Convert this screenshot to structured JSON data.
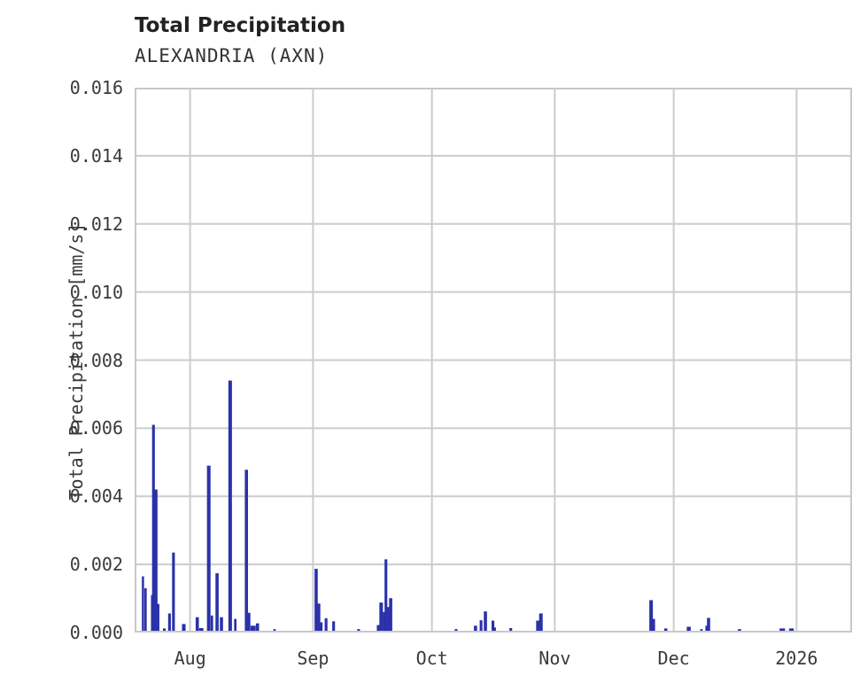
{
  "header": {
    "title": "Total Precipitation",
    "subtitle": "ALEXANDRIA (AXN)"
  },
  "chart_data": {
    "type": "bar",
    "title": "Total Precipitation",
    "subtitle": "ALEXANDRIA (AXN)",
    "station": "ALEXANDRIA (AXN)",
    "xlabel": "",
    "ylabel": "Total Precipitation [mm/s]",
    "ylim": [
      0,
      0.016
    ],
    "y_ticks": [
      0.0,
      0.002,
      0.004,
      0.006,
      0.008,
      0.01,
      0.012,
      0.014,
      0.016
    ],
    "y_tick_labels": [
      "0.000",
      "0.002",
      "0.004",
      "0.006",
      "0.008",
      "0.010",
      "0.012",
      "0.014",
      "0.016"
    ],
    "grid": true,
    "grid_color": "#cccccc",
    "border_color": "#c8c8c8",
    "bar_color": "#2a31a9",
    "x_axis_note": "time axis spans ~181 days, mid-July 2025 to mid-January 2026; day_offset 0 = left plot edge",
    "x_domain_days": 181,
    "x_ticks": [
      {
        "day": 14,
        "label": "Aug"
      },
      {
        "day": 45,
        "label": "Sep"
      },
      {
        "day": 75,
        "label": "Oct"
      },
      {
        "day": 106,
        "label": "Nov"
      },
      {
        "day": 136,
        "label": "Dec"
      },
      {
        "day": 167,
        "label": "2026"
      }
    ],
    "bars_format": [
      "day_offset",
      "value_mm_per_s",
      "width_days"
    ],
    "bars": [
      [
        2.1,
        0.00165,
        0.55
      ],
      [
        2.75,
        0.0013,
        0.6
      ],
      [
        4.35,
        0.0011,
        0.45
      ],
      [
        4.75,
        0.0061,
        0.7
      ],
      [
        5.35,
        0.0042,
        0.85
      ],
      [
        5.95,
        0.00084,
        0.6
      ],
      [
        7.5,
        0.00012,
        0.7
      ],
      [
        8.8,
        0.00056,
        0.7
      ],
      [
        9.8,
        0.00235,
        0.7
      ],
      [
        12.4,
        0.00025,
        0.9
      ],
      [
        15.8,
        0.00045,
        0.8
      ],
      [
        16.8,
        0.00013,
        1.1
      ],
      [
        18.7,
        0.0049,
        0.9
      ],
      [
        19.5,
        0.0005,
        0.6
      ],
      [
        20.8,
        0.00174,
        0.8
      ],
      [
        21.9,
        0.00045,
        0.8
      ],
      [
        24.1,
        0.0074,
        0.9
      ],
      [
        25.4,
        0.0004,
        0.6
      ],
      [
        28.2,
        0.00478,
        0.8
      ],
      [
        28.9,
        0.00058,
        0.6
      ],
      [
        29.9,
        0.0002,
        1.3
      ],
      [
        31.0,
        0.00027,
        0.8
      ],
      [
        35.3,
        0.0001,
        0.6
      ],
      [
        45.8,
        0.00187,
        0.8
      ],
      [
        46.5,
        0.00085,
        0.7
      ],
      [
        47.1,
        0.0003,
        0.6
      ],
      [
        48.3,
        0.00042,
        0.7
      ],
      [
        50.2,
        0.00033,
        0.7
      ],
      [
        56.5,
        0.0001,
        0.7
      ],
      [
        61.6,
        0.00022,
        1.0
      ],
      [
        62.2,
        0.00088,
        0.9
      ],
      [
        62.9,
        0.0006,
        0.6
      ],
      [
        63.4,
        0.00215,
        0.7
      ],
      [
        64.0,
        0.00075,
        0.6
      ],
      [
        64.6,
        0.00101,
        0.8
      ],
      [
        81.1,
        0.0001,
        0.7
      ],
      [
        86.0,
        0.0002,
        0.8
      ],
      [
        87.4,
        0.00036,
        0.7
      ],
      [
        88.5,
        0.00062,
        0.8
      ],
      [
        90.4,
        0.00035,
        0.7
      ],
      [
        90.9,
        0.00015,
        0.5
      ],
      [
        94.9,
        0.00013,
        0.7
      ],
      [
        101.7,
        0.00035,
        0.8
      ],
      [
        102.5,
        0.00056,
        0.9
      ],
      [
        130.3,
        0.00095,
        0.9
      ],
      [
        131.0,
        0.0004,
        0.6
      ],
      [
        134.0,
        0.00012,
        0.8
      ],
      [
        139.8,
        0.00017,
        1.0
      ],
      [
        143.0,
        0.0001,
        0.6
      ],
      [
        144.3,
        0.0002,
        0.6
      ],
      [
        144.8,
        0.00043,
        0.8
      ],
      [
        152.6,
        0.0001,
        0.8
      ],
      [
        163.4,
        0.00012,
        1.4
      ],
      [
        165.7,
        0.00012,
        1.2
      ]
    ]
  }
}
